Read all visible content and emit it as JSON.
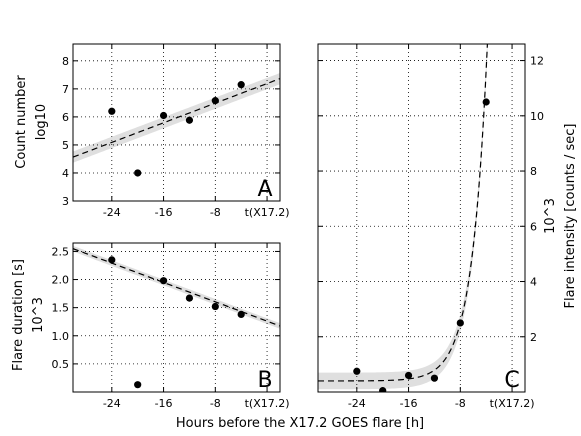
{
  "figure": {
    "xlabel": "Hours before the X17.2 GOES flare [h]",
    "x_tick_labels": [
      "-24",
      "-16",
      "-8",
      "t(X17.2)"
    ]
  },
  "chart_data": [
    {
      "panel": "A",
      "type": "scatter",
      "ylabel_lines": [
        "Count number",
        "log10"
      ],
      "xlim": [
        -30,
        2
      ],
      "ylim": [
        3,
        8.6
      ],
      "x_ticks": [
        -24,
        -16,
        -8,
        0
      ],
      "x_tick_labels": [
        "-24",
        "-16",
        "-8",
        "t(X17.2)"
      ],
      "y_ticks": [
        3,
        4,
        5,
        6,
        7,
        8
      ],
      "points": [
        {
          "x": -24,
          "y": 6.2
        },
        {
          "x": -20,
          "y": 4.0
        },
        {
          "x": -16,
          "y": 6.05
        },
        {
          "x": -12,
          "y": 5.88
        },
        {
          "x": -8,
          "y": 6.58
        },
        {
          "x": -4,
          "y": 7.15
        }
      ],
      "fit": {
        "type": "linear",
        "slope": 0.0875,
        "intercept": 7.19,
        "dashed": true,
        "band": 0.2
      },
      "grid": true
    },
    {
      "panel": "B",
      "type": "scatter",
      "ylabel_lines": [
        "Flare duration [s]",
        "10^3"
      ],
      "xlim": [
        -30,
        2
      ],
      "ylim": [
        0,
        2.65
      ],
      "x_ticks": [
        -24,
        -16,
        -8,
        0
      ],
      "x_tick_labels": [
        "-24",
        "-16",
        "-8",
        "t(X17.2)"
      ],
      "y_ticks": [
        0.5,
        1.0,
        1.5,
        2.0,
        2.5
      ],
      "y_tick_labels": [
        "0.5",
        "1.0",
        "1.5",
        "2.0",
        "2.5"
      ],
      "points": [
        {
          "x": -24,
          "y": 2.35
        },
        {
          "x": -20,
          "y": 0.13
        },
        {
          "x": -16,
          "y": 1.98
        },
        {
          "x": -12,
          "y": 1.67
        },
        {
          "x": -8,
          "y": 1.52
        },
        {
          "x": -4,
          "y": 1.38
        }
      ],
      "fit": {
        "type": "linear",
        "slope": -0.043,
        "intercept": 1.26,
        "dashed": true,
        "band": 0.05
      },
      "grid": true
    },
    {
      "panel": "C",
      "type": "scatter",
      "ylabel_lines": [
        "10^3",
        "Flare intensity [counts / sec]"
      ],
      "xlim": [
        -30,
        2
      ],
      "ylim": [
        0,
        12.6
      ],
      "x_ticks": [
        -24,
        -16,
        -8,
        0
      ],
      "x_tick_labels": [
        "-24",
        "-16",
        "-8",
        "t(X17.2)"
      ],
      "y_ticks": [
        2,
        4,
        6,
        8,
        10,
        12
      ],
      "points": [
        {
          "x": -24,
          "y": 0.75
        },
        {
          "x": -20,
          "y": 0.05
        },
        {
          "x": -16,
          "y": 0.6
        },
        {
          "x": -12,
          "y": 0.5
        },
        {
          "x": -8,
          "y": 2.5
        },
        {
          "x": -4,
          "y": 10.5
        }
      ],
      "fit": {
        "type": "exponential",
        "baseline": 0.4,
        "amplitude": 2.1,
        "x_ref": -8,
        "rate": 0.42,
        "dashed": true,
        "band": 0.3
      },
      "grid": true
    }
  ]
}
